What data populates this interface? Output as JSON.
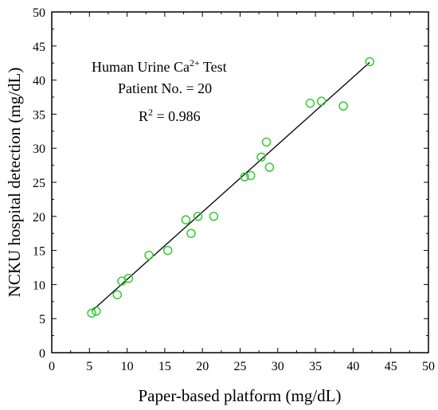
{
  "chart_data": {
    "type": "scatter",
    "xlabel": "Paper-based platform (mg/dL)",
    "ylabel": "NCKU hospital detection (mg/dL)",
    "xlim": [
      0,
      50
    ],
    "ylim": [
      0,
      50
    ],
    "xticks": [
      "0",
      "5",
      "10",
      "15",
      "20",
      "25",
      "30",
      "35",
      "40",
      "45",
      "50"
    ],
    "yticks": [
      "0",
      "5",
      "10",
      "15",
      "20",
      "25",
      "30",
      "35",
      "40",
      "45",
      "50"
    ],
    "grid": false,
    "marker_color": "#33cc33",
    "line_color": "#000000",
    "annotations": {
      "line1": "Human Urine Ca",
      "line1_sup": "2+",
      "line1_suffix": " Test",
      "line2": "Patient No. = 20",
      "line3": "R",
      "line3_sup": "2",
      "line3_suffix": " = 0.986"
    },
    "points": [
      {
        "x": 5.3,
        "y": 5.8
      },
      {
        "x": 5.9,
        "y": 6.1
      },
      {
        "x": 8.7,
        "y": 8.5
      },
      {
        "x": 9.3,
        "y": 10.5
      },
      {
        "x": 10.2,
        "y": 10.9
      },
      {
        "x": 12.9,
        "y": 14.3
      },
      {
        "x": 15.4,
        "y": 15.0
      },
      {
        "x": 17.8,
        "y": 19.5
      },
      {
        "x": 18.5,
        "y": 17.5
      },
      {
        "x": 19.4,
        "y": 20.0
      },
      {
        "x": 21.5,
        "y": 20.0
      },
      {
        "x": 25.6,
        "y": 25.8
      },
      {
        "x": 26.4,
        "y": 26.0
      },
      {
        "x": 27.8,
        "y": 28.7
      },
      {
        "x": 28.5,
        "y": 30.9
      },
      {
        "x": 28.9,
        "y": 27.2
      },
      {
        "x": 34.3,
        "y": 36.6
      },
      {
        "x": 35.8,
        "y": 36.9
      },
      {
        "x": 38.7,
        "y": 36.2
      },
      {
        "x": 42.2,
        "y": 42.7
      }
    ],
    "fit": {
      "x": [
        5.3,
        42.2
      ],
      "y": [
        6.1,
        42.6
      ]
    }
  }
}
